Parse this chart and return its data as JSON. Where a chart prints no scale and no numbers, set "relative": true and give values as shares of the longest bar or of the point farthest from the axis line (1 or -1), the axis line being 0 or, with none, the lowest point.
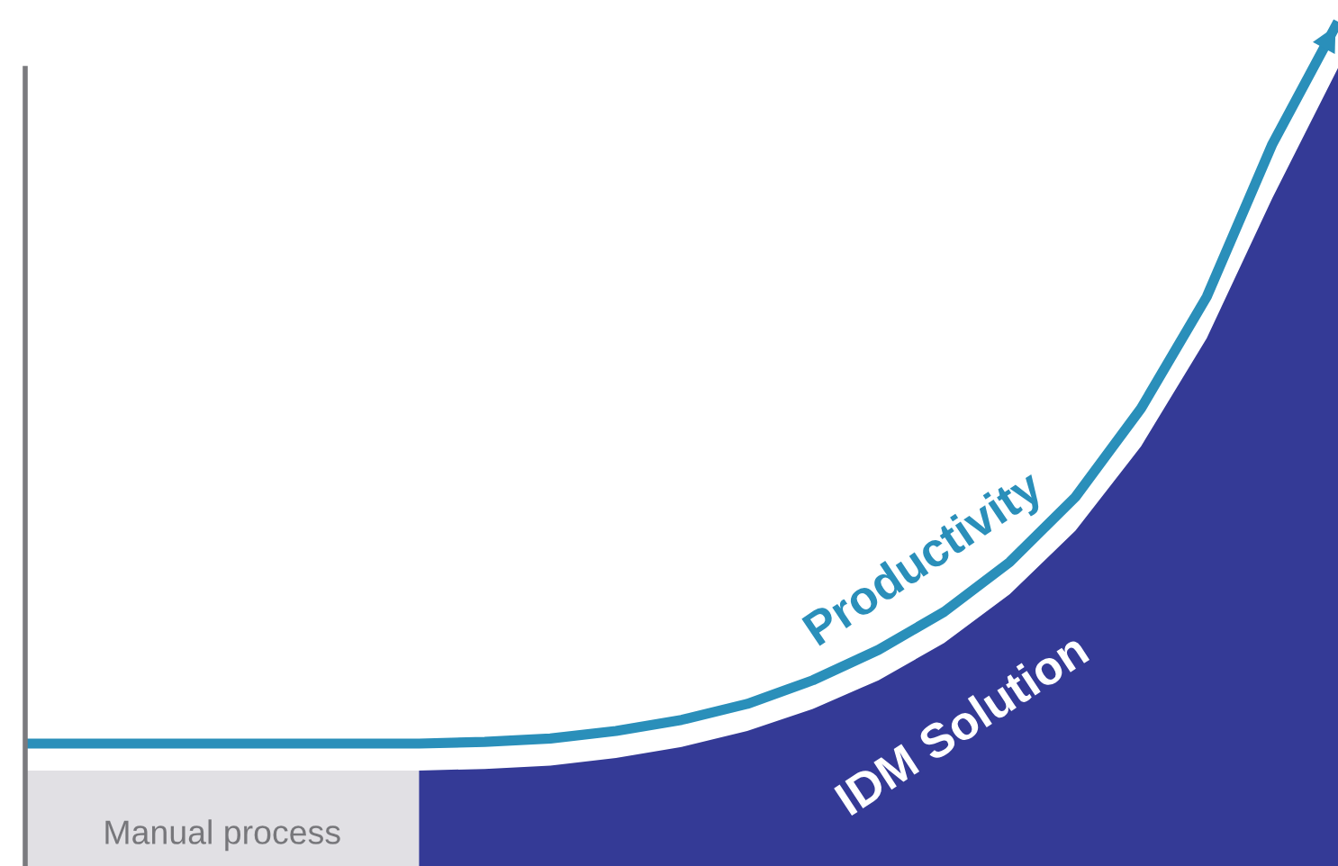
{
  "chart_data": {
    "type": "area",
    "relative": true,
    "categories": [
      null,
      null,
      null,
      null,
      null,
      null,
      null,
      null,
      null,
      null,
      null,
      null,
      null,
      null,
      null,
      null,
      null,
      null,
      null,
      null,
      null
    ],
    "grid": false,
    "legend": false,
    "series": [
      {
        "name": "Manual process",
        "color": "#e1e0e4",
        "values": [
          0.113,
          0.113,
          0.113,
          0.113,
          0.113,
          0.113,
          0.113,
          null,
          null,
          null,
          null,
          null,
          null,
          null,
          null,
          null,
          null,
          null,
          null,
          null,
          null
        ]
      },
      {
        "name": "IDM Solution",
        "color": "#343a96",
        "values": [
          null,
          null,
          null,
          null,
          null,
          null,
          0.113,
          0.115,
          0.119,
          0.128,
          0.141,
          0.16,
          0.186,
          0.22,
          0.264,
          0.322,
          0.397,
          0.497,
          0.625,
          0.791,
          0.945
        ]
      },
      {
        "name": "Productivity",
        "type": "line",
        "color": "#2a8fba",
        "values": [
          0.145,
          0.145,
          0.145,
          0.145,
          0.145,
          0.145,
          0.145,
          0.147,
          0.151,
          0.16,
          0.173,
          0.192,
          0.22,
          0.256,
          0.301,
          0.36,
          0.437,
          0.542,
          0.674,
          0.855,
          1
        ]
      }
    ]
  }
}
